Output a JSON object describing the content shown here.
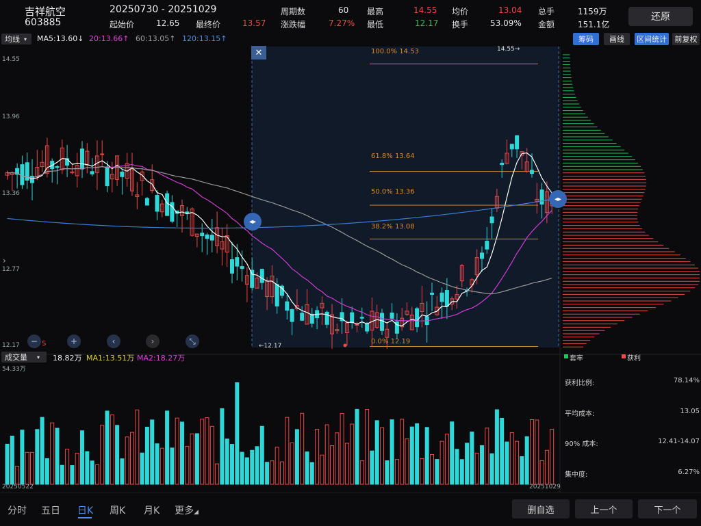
{
  "stock": {
    "name": "吉祥航空",
    "code": "603885"
  },
  "range": {
    "text": "20250730  - 20251029"
  },
  "header": {
    "start_label": "起始价",
    "start_value": "12.65",
    "end_label": "最终价",
    "end_value": "13.57",
    "period_label": "周期数",
    "period_value": "60",
    "change_label": "涨跌幅",
    "change_value": "7.27%",
    "high_label": "最高",
    "high_value": "14.55",
    "low_label": "最低",
    "low_value": "12.17",
    "avg_label": "均价",
    "avg_value": "13.04",
    "turnover_label": "换手",
    "turnover_value": "53.09%",
    "hands_label": "总手",
    "hands_value": "1159万",
    "amount_label": "金额",
    "amount_value": "151.1亿",
    "restore_label": "还原"
  },
  "toolbar": {
    "ma_select": "均线",
    "ma5": "MA5:13.60↓",
    "ma20": "20:13.66↑",
    "ma60": "60:13.05↑",
    "ma120": "120:13.15↑",
    "btn_chip": "筹码",
    "btn_draw": "画线",
    "btn_stats": "区间统计",
    "btn_adjust": "前复权"
  },
  "price_axis": {
    "top": "14.55",
    "mid1": "13.96",
    "mid2": "13.36",
    "mid3": "12.77",
    "bottom": "12.17"
  },
  "price_marks": {
    "high": "14.55→",
    "low": "←12.17"
  },
  "fibonacci": [
    {
      "label": "100.0%  14.53",
      "value": 14.53
    },
    {
      "label": "61.8%  13.64",
      "value": 13.64
    },
    {
      "label": "50.0%  13.36",
      "value": 13.36
    },
    {
      "label": "38.2%  13.08",
      "value": 13.08
    },
    {
      "label": "0.0%  12.19",
      "value": 12.19
    }
  ],
  "volume_bar": {
    "select": "成交量",
    "vol": "18.82万",
    "ma1": "MA1:13.51万",
    "ma2": "MA2:18.27万",
    "axis_top": "54.33万",
    "date_start": "20250522",
    "date_end": "20251029"
  },
  "chip_legend": {
    "trapped": "套牢",
    "profit": "获利"
  },
  "chip_stats": [
    {
      "label": "获利比例:",
      "value": "78.14%"
    },
    {
      "label": "平均成本:",
      "value": "13.05"
    },
    {
      "label": "90% 成本:",
      "value": "12.41-14.07"
    },
    {
      "label": "集中度:",
      "value": "6.27%"
    }
  ],
  "nav": {
    "tabs": [
      "分时",
      "五日",
      "日K",
      "周K",
      "月K",
      "更多"
    ],
    "self_select": "删自选",
    "prev": "上一个",
    "next": "下一个"
  },
  "colors": {
    "up": "#f04848",
    "down": "#2fd8d8",
    "ma5": "#ffffff",
    "ma20": "#d43bd4",
    "ma60": "#9a9a9a",
    "ma120": "#3b7fd6",
    "fib": "#d88a2a"
  }
}
